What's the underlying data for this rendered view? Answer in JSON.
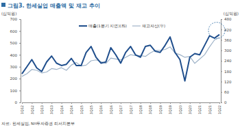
{
  "chart_data": {
    "type": "line",
    "title": "그림3. 한세실업 매출액 및 재고 추이",
    "y_label": "(십억원)",
    "y2_label": "(십억원)",
    "source": "자료: 한세실업, NH투자증권 리서치본부",
    "categories": [
      "1Q12",
      null,
      "3Q12",
      null,
      "1Q13",
      null,
      "3Q13",
      null,
      "1Q14",
      null,
      "3Q14",
      null,
      "1Q15",
      null,
      "3Q15",
      null,
      "1Q16",
      null,
      "3Q16",
      null,
      "1Q17",
      null,
      "3Q17",
      null,
      "1Q18",
      null,
      "3Q18",
      null,
      "1Q19",
      null,
      "3Q19",
      null,
      "1Q20",
      null,
      "3Q20",
      null,
      "1Q21",
      null,
      "3Q21",
      null,
      "1Q22"
    ],
    "series": [
      {
        "name": "매출(1분기 지연)(좌)",
        "color": "#1f4e8c",
        "values": [
          240,
          300,
          360,
          290,
          260,
          340,
          390,
          330,
          310,
          320,
          370,
          310,
          310,
          420,
          470,
          380,
          330,
          340,
          460,
          400,
          330,
          420,
          470,
          400,
          380,
          470,
          480,
          430,
          420,
          480,
          550,
          420,
          360,
          180,
          380,
          410,
          400,
          480,
          560,
          540,
          570
        ]
      },
      {
        "name": "재고자산(우)",
        "color": "#9fb3c8",
        "axis": "y2",
        "values": [
          150,
          165,
          190,
          185,
          170,
          175,
          195,
          190,
          200,
          185,
          215,
          230,
          210,
          215,
          240,
          245,
          235,
          225,
          255,
          250,
          245,
          260,
          275,
          270,
          270,
          265,
          285,
          300,
          300,
          305,
          320,
          285,
          275,
          260,
          265,
          225,
          250,
          275,
          320,
          360,
          375
        ]
      }
    ],
    "ylim": [
      0,
      700
    ],
    "yticks": [
      0,
      100,
      200,
      300,
      400,
      500,
      600,
      700
    ],
    "y2lim": [
      0,
      480
    ],
    "y2ticks": [
      0,
      60,
      120,
      180,
      240,
      300,
      360,
      420,
      480
    ],
    "grid": false,
    "legend": "top"
  }
}
